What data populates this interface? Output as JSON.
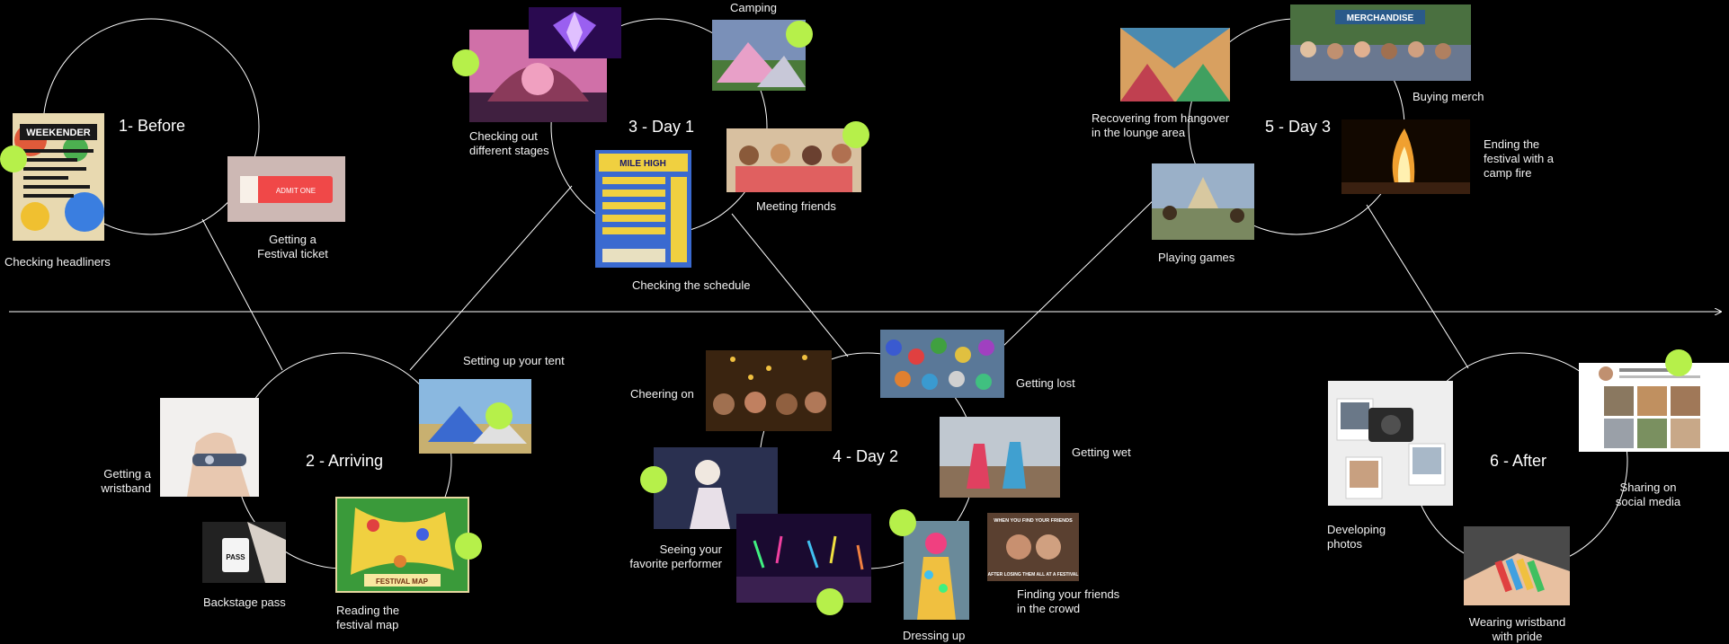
{
  "stages": {
    "before": "1- Before",
    "arriving": "2 - Arriving",
    "day1": "3 - Day 1",
    "day2": "4 - Day 2",
    "day3": "5 - Day 3",
    "after": "6 - After"
  },
  "labels": {
    "checking_headliners": "Checking headliners",
    "festival_ticket": "Getting a\nFestival ticket",
    "getting_wristband": "Getting a\nwristband",
    "backstage_pass": "Backstage pass",
    "reading_map": "Reading the\nfestival map",
    "setting_up_tent": "Setting up your tent",
    "checking_stages": "Checking out\ndifferent stages",
    "camping": "Camping",
    "meeting_friends": "Meeting friends",
    "checking_schedule": "Checking the schedule",
    "cheering_on": "Cheering on",
    "favorite_performer": "Seeing your\nfavorite performer",
    "getting_lost": "Getting lost",
    "getting_wet": "Getting wet",
    "finding_friends": "Finding your friends\nin the crowd",
    "dressing_up": "Dressing up",
    "recovering": "Recovering from hangover\nin the lounge area",
    "buying_merch": "Buying merch",
    "camp_fire": "Ending the\nfestival with a\ncamp fire",
    "playing_games": "Playing games",
    "developing_photos": "Developing\nphotos",
    "sharing_social": "Sharing on\nsocial media",
    "wearing_wristband": "Wearing wristband\nwith pride"
  },
  "image_text": {
    "poster_title": "WEEKENDER",
    "ticket": "ADMIT ONE",
    "pass": "PASS",
    "map": "FESTIVAL MAP",
    "schedule": "MILE HIGH",
    "merch_sign": "MERCHANDISE",
    "meme_top": "WHEN YOU FIND YOUR FRIENDS",
    "meme_bottom": "AFTER LOSING THEM ALL AT A FESTIVAL"
  },
  "colors": {
    "background": "#000000",
    "line": "#ffffff",
    "accent_dot": "#b6f04a"
  }
}
